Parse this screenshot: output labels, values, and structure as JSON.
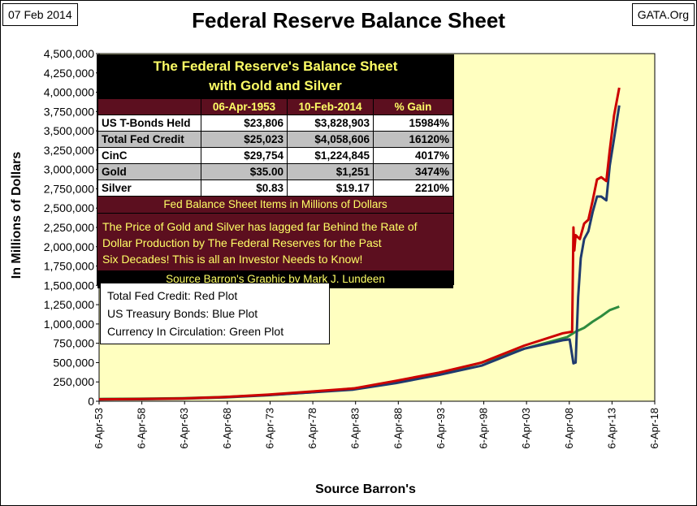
{
  "header": {
    "date": "07 Feb 2014",
    "site": "GATA.Org",
    "title": "Federal Reserve Balance Sheet"
  },
  "chart_data": {
    "type": "line",
    "title": "Federal Reserve Balance Sheet",
    "xlabel": "Source Barron's",
    "ylabel": "In Millions  of  Dollars",
    "ylim": [
      0,
      4500000
    ],
    "xlim": [
      1953.26,
      2018.26
    ],
    "yticks": [
      "0",
      "250,000",
      "500,000",
      "750,000",
      "1,000,000",
      "1,250,000",
      "1,500,000",
      "1,750,000",
      "2,000,000",
      "2,250,000",
      "2,500,000",
      "2,750,000",
      "3,000,000",
      "3,250,000",
      "3,500,000",
      "3,750,000",
      "4,000,000",
      "4,250,000",
      "4,500,000"
    ],
    "xticks": [
      "6-Apr-53",
      "6-Apr-58",
      "6-Apr-63",
      "6-Apr-68",
      "6-Apr-73",
      "6-Apr-78",
      "6-Apr-83",
      "6-Apr-88",
      "6-Apr-93",
      "6-Apr-98",
      "6-Apr-03",
      "6-Apr-08",
      "6-Apr-13",
      "6-Apr-18"
    ],
    "grid": false,
    "plot_background": "#ffffc0",
    "series": [
      {
        "name": "Total Fed Credit",
        "color": "#cc0000",
        "x": [
          1953.26,
          1958,
          1963,
          1968,
          1973,
          1978,
          1983,
          1988,
          1993,
          1998,
          2003,
          2007.5,
          2008.6,
          2008.75,
          2008.85,
          2009.0,
          2009.5,
          2010.0,
          2010.5,
          2011.0,
          2011.5,
          2012.0,
          2012.6,
          2013.0,
          2013.5,
          2014.11
        ],
        "y": [
          25023,
          28000,
          36000,
          55000,
          85000,
          125000,
          165000,
          265000,
          370000,
          500000,
          720000,
          880000,
          900000,
          2250000,
          1950000,
          2150000,
          2100000,
          2300000,
          2350000,
          2600000,
          2870000,
          2900000,
          2850000,
          3250000,
          3700000,
          4058606
        ]
      },
      {
        "name": "US Treasury Bonds",
        "color": "#1f3a6e",
        "x": [
          1953.26,
          1958,
          1963,
          1968,
          1973,
          1978,
          1983,
          1988,
          1993,
          1998,
          2003,
          2007.5,
          2008.3,
          2008.75,
          2009.0,
          2009.3,
          2009.6,
          2010.0,
          2010.5,
          2011.0,
          2011.5,
          2012.0,
          2012.6,
          2013.0,
          2013.5,
          2014.11
        ],
        "y": [
          23806,
          26000,
          33000,
          50000,
          78000,
          115000,
          150000,
          235000,
          340000,
          460000,
          680000,
          790000,
          800000,
          490000,
          500000,
          1350000,
          1850000,
          2100000,
          2200000,
          2450000,
          2650000,
          2650000,
          2600000,
          3050000,
          3400000,
          3828903
        ]
      },
      {
        "name": "Currency In Circulation",
        "color": "#2e8b3e",
        "x": [
          1953.26,
          1958,
          1963,
          1968,
          1973,
          1978,
          1983,
          1988,
          1993,
          1998,
          2003,
          2008,
          2009,
          2010,
          2011,
          2012,
          2013,
          2014.11
        ],
        "y": [
          29754,
          33000,
          40000,
          55000,
          80000,
          115000,
          165000,
          240000,
          350000,
          500000,
          680000,
          830000,
          900000,
          950000,
          1030000,
          1100000,
          1180000,
          1224845
        ]
      }
    ]
  },
  "info_table": {
    "heading_line1": "The Federal Reserve's Balance Sheet",
    "heading_line2": "with Gold and Silver",
    "columns": [
      "",
      "06-Apr-1953",
      "10-Feb-2014",
      "% Gain"
    ],
    "rows": [
      {
        "label": "US T-Bonds Held",
        "v1953": "$23,806",
        "v2014": "$3,828,903",
        "gain": "15984%"
      },
      {
        "label": "Total Fed Credit",
        "v1953": "$25,023",
        "v2014": "$4,058,606",
        "gain": "16120%"
      },
      {
        "label": "CinC",
        "v1953": "$29,754",
        "v2014": "$1,224,845",
        "gain": "4017%"
      },
      {
        "label": "Gold",
        "v1953": "$35.00",
        "v2014": "$1,251",
        "gain": "3474%"
      },
      {
        "label": "Silver",
        "v1953": "$0.83",
        "v2014": "$19.17",
        "gain": "2210%"
      }
    ],
    "units_note": "Fed Balance Sheet Items in Millions of Dollars",
    "note_line1": "The Price of Gold and Silver has lagged far Behind the Rate of",
    "note_line2": "Dollar Production by The Federal Reserves for the Past",
    "note_line3": "Six Decades!  This is all an Investor Needs to Know!",
    "source": "Source Barron's    Graphic by Mark J. Lundeen"
  },
  "legend": {
    "line1": "Total Fed Credit:  Red Plot",
    "line2": "US Treasury Bonds: Blue Plot",
    "line3": "Currency In Circulation: Green Plot"
  }
}
